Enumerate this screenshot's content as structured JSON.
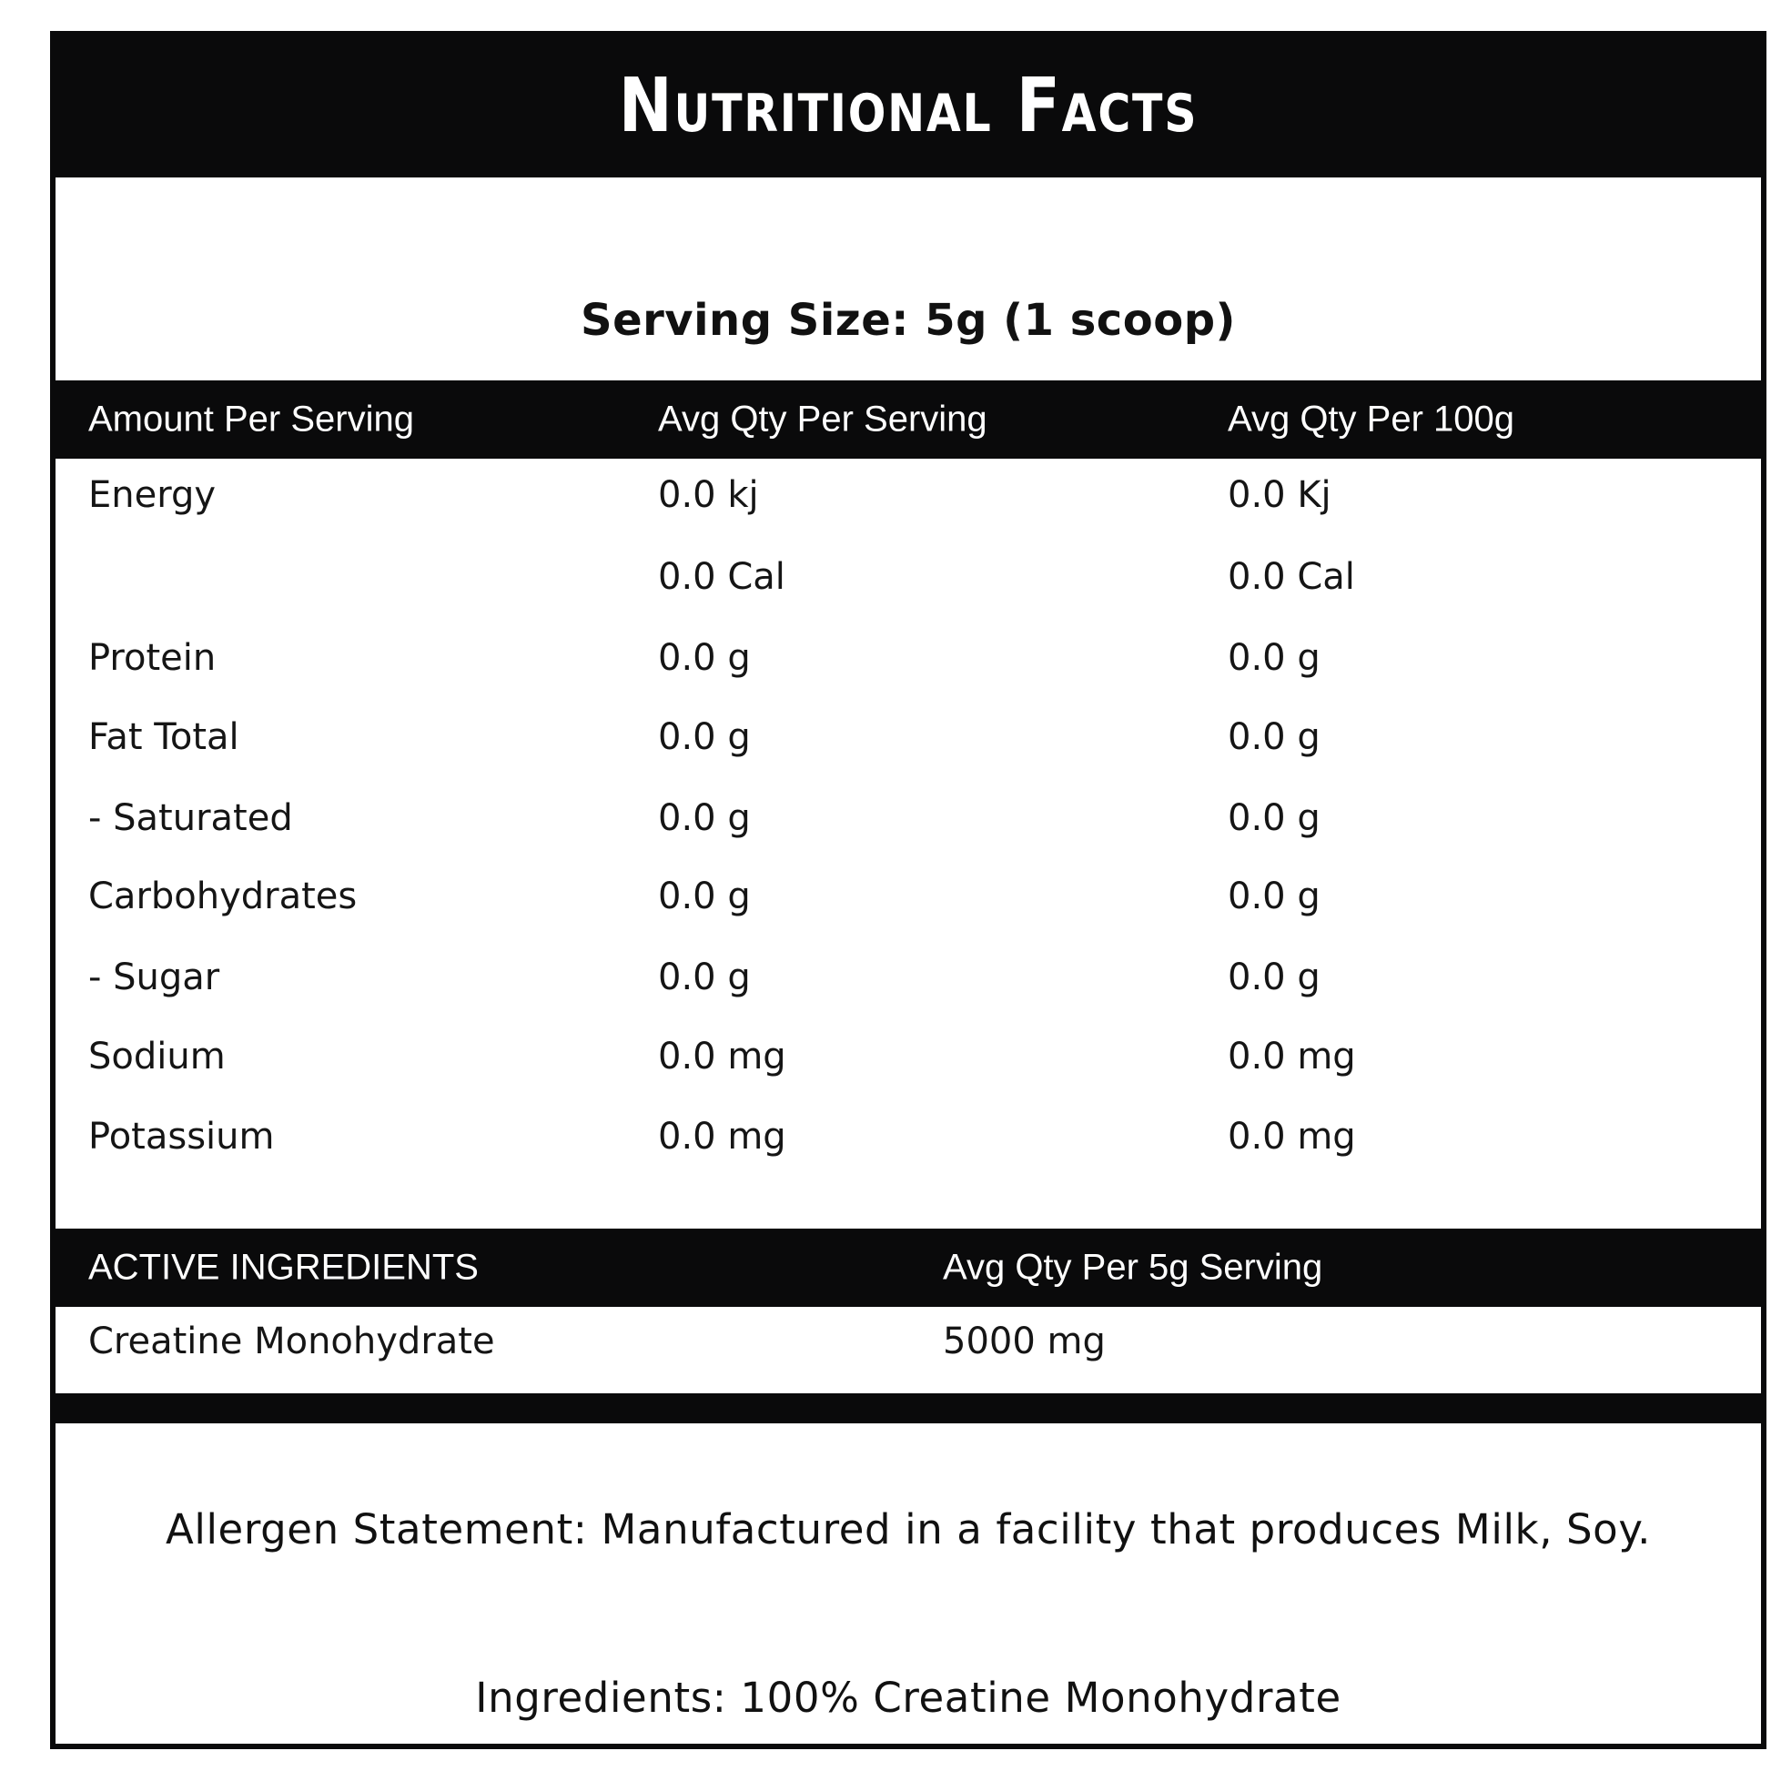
{
  "title": "Nutritional Facts",
  "serving_size": "Serving Size: 5g (1 scoop)",
  "table_header": {
    "col1": "Amount Per Serving",
    "col2": "Avg Qty Per Serving",
    "col3": "Avg Qty Per 100g"
  },
  "rows": [
    {
      "name": "Energy",
      "per_serving": "0.0 kj",
      "per_100g": "0.0 Kj"
    },
    {
      "name": "",
      "per_serving": "0.0 Cal",
      "per_100g": "0.0 Cal"
    },
    {
      "name": "Protein",
      "per_serving": "0.0 g",
      "per_100g": "0.0 g"
    },
    {
      "name": "Fat Total",
      "per_serving": "0.0 g",
      "per_100g": "0.0 g"
    },
    {
      "name": "- Saturated",
      "per_serving": "0.0 g",
      "per_100g": "0.0 g"
    },
    {
      "name": "Carbohydrates",
      "per_serving": "0.0 g",
      "per_100g": "0.0 g"
    },
    {
      "name": "- Sugar",
      "per_serving": "0.0 g",
      "per_100g": "0.0 g"
    },
    {
      "name": "Sodium",
      "per_serving": "0.0 mg",
      "per_100g": "0.0 mg"
    },
    {
      "name": "Potassium",
      "per_serving": "0.0 mg",
      "per_100g": "0.0 mg"
    }
  ],
  "active_header": {
    "col1": "ACTIVE INGREDIENTS",
    "col2": "Avg Qty Per 5g Serving"
  },
  "active_rows": [
    {
      "name": "Creatine Monohydrate",
      "amount": "5000 mg"
    }
  ],
  "allergen": "Allergen Statement: Manufactured in a facility that produces Milk, Soy.",
  "ingredients": "Ingredients: 100% Creatine Monohydrate"
}
